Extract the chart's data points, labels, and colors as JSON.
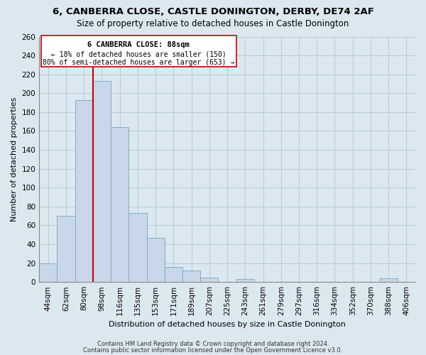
{
  "title": "6, CANBERRA CLOSE, CASTLE DONINGTON, DERBY, DE74 2AF",
  "subtitle": "Size of property relative to detached houses in Castle Donington",
  "xlabel": "Distribution of detached houses by size in Castle Donington",
  "ylabel": "Number of detached properties",
  "bar_color": "#c8d8ea",
  "bar_edge_color": "#7aaec8",
  "background_color": "#dce8f0",
  "plot_bg_color": "#dce8f0",
  "grid_color": "#b8ccd8",
  "categories": [
    "44sqm",
    "62sqm",
    "80sqm",
    "98sqm",
    "116sqm",
    "135sqm",
    "153sqm",
    "171sqm",
    "189sqm",
    "207sqm",
    "225sqm",
    "243sqm",
    "261sqm",
    "279sqm",
    "297sqm",
    "316sqm",
    "334sqm",
    "352sqm",
    "370sqm",
    "388sqm",
    "406sqm"
  ],
  "values": [
    20,
    70,
    193,
    213,
    164,
    73,
    47,
    16,
    12,
    5,
    0,
    3,
    0,
    0,
    0,
    0,
    0,
    0,
    0,
    4,
    0
  ],
  "ylim": [
    0,
    260
  ],
  "yticks": [
    0,
    20,
    40,
    60,
    80,
    100,
    120,
    140,
    160,
    180,
    200,
    220,
    240,
    260
  ],
  "vline_color": "#cc0000",
  "annotation_title": "6 CANBERRA CLOSE: 88sqm",
  "annotation_line1": "← 18% of detached houses are smaller (150)",
  "annotation_line2": "80% of semi-detached houses are larger (653) →",
  "annotation_box_color": "#ffffff",
  "annotation_box_edge": "#cc0000",
  "footer_line1": "Contains HM Land Registry data © Crown copyright and database right 2024.",
  "footer_line2": "Contains public sector information licensed under the Open Government Licence v3.0."
}
